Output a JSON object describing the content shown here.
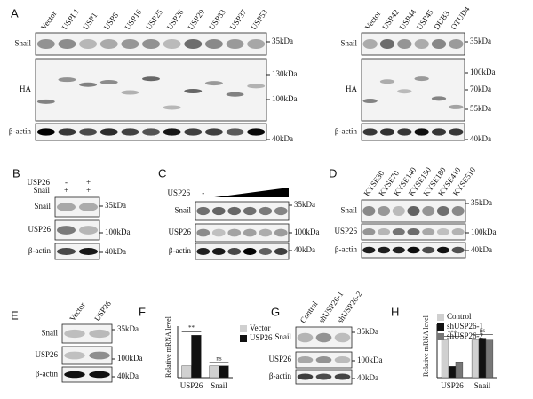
{
  "panels": {
    "A": {
      "label": "A",
      "left": {
        "lanes": [
          "Vector",
          "USPL1",
          "USP1",
          "USP8",
          "USP16",
          "USP25",
          "USP26",
          "USP29",
          "USP33",
          "USP37",
          "USP53"
        ],
        "rows": [
          "Snail",
          "HA",
          "β-actin"
        ],
        "markers": [
          "35kDa",
          "130kDa",
          "100kDa",
          "40kDa"
        ]
      },
      "right": {
        "lanes": [
          "Vector",
          "USP42",
          "USP44",
          "USP45",
          "DUB3",
          "OTUD4"
        ],
        "rows": [
          "Snail",
          "HA",
          "β-actin"
        ],
        "markers": [
          "35kDa",
          "100kDa",
          "70kDa",
          "55kDa",
          "40kDa"
        ]
      }
    },
    "B": {
      "label": "B",
      "conditions": [
        {
          "name": "USP26",
          "marks": [
            "-",
            "+"
          ]
        },
        {
          "name": "Snail",
          "marks": [
            "+",
            "+"
          ]
        }
      ],
      "rows": [
        "Snail",
        "USP26",
        "β-actin"
      ],
      "markers": [
        "35kDa",
        "100kDa",
        "40kDa"
      ]
    },
    "C": {
      "label": "C",
      "conditions": [
        {
          "name": "USP26",
          "marks": [
            "-"
          ]
        }
      ],
      "rows": [
        "Snail",
        "USP26",
        "β-actin"
      ],
      "markers": [
        "35kDa",
        "100kDa",
        "40kDa"
      ]
    },
    "D": {
      "label": "D",
      "lanes": [
        "KYSE30",
        "KYSE70",
        "KYSE140",
        "KYSE150",
        "KYSE180",
        "KYSE410",
        "KYSE510"
      ],
      "rows": [
        "Snail",
        "USP26",
        "β-actin"
      ],
      "markers": [
        "35kDa",
        "100kDa",
        "40kDa"
      ]
    },
    "E": {
      "label": "E",
      "lanes": [
        "Vector",
        "USP26"
      ],
      "rows": [
        "Snail",
        "USP26",
        "β-actin"
      ],
      "markers": [
        "35kDa",
        "100kDa",
        "40kDa"
      ]
    },
    "F": {
      "label": "F"
    },
    "G": {
      "label": "G",
      "lanes": [
        "Control",
        "shUSP26-1",
        "shUSP26-2"
      ],
      "rows": [
        "Snail",
        "USP26",
        "β-actin"
      ],
      "markers": [
        "35kDa",
        "100kDa",
        "40kDa"
      ]
    },
    "H": {
      "label": "H"
    }
  },
  "chart_data": [
    {
      "type": "bar",
      "y_label": "Relative mRNA level",
      "categories": [
        "USP26",
        "Snail"
      ],
      "ylim": [
        0,
        4
      ],
      "series": [
        {
          "name": "Vector",
          "color": "#d0d0d0",
          "values": [
            1,
            1
          ]
        },
        {
          "name": "USP26",
          "color": "#111111",
          "values": [
            3.6,
            1.0
          ]
        }
      ],
      "annotations": [
        "**",
        "ns"
      ]
    },
    {
      "type": "bar",
      "y_label": "Relative mRNA level",
      "categories": [
        "USP26",
        "Snail"
      ],
      "ylim": [
        0,
        1.3
      ],
      "series": [
        {
          "name": "Control",
          "color": "#d0d0d0",
          "values": [
            1,
            1
          ]
        },
        {
          "name": "shUSP26-1",
          "color": "#111111",
          "values": [
            0.3,
            1.05
          ]
        },
        {
          "name": "shUSP26-2",
          "color": "#777777",
          "values": [
            0.42,
            1.0
          ]
        }
      ],
      "annotations": [
        "***",
        "ns"
      ]
    }
  ]
}
